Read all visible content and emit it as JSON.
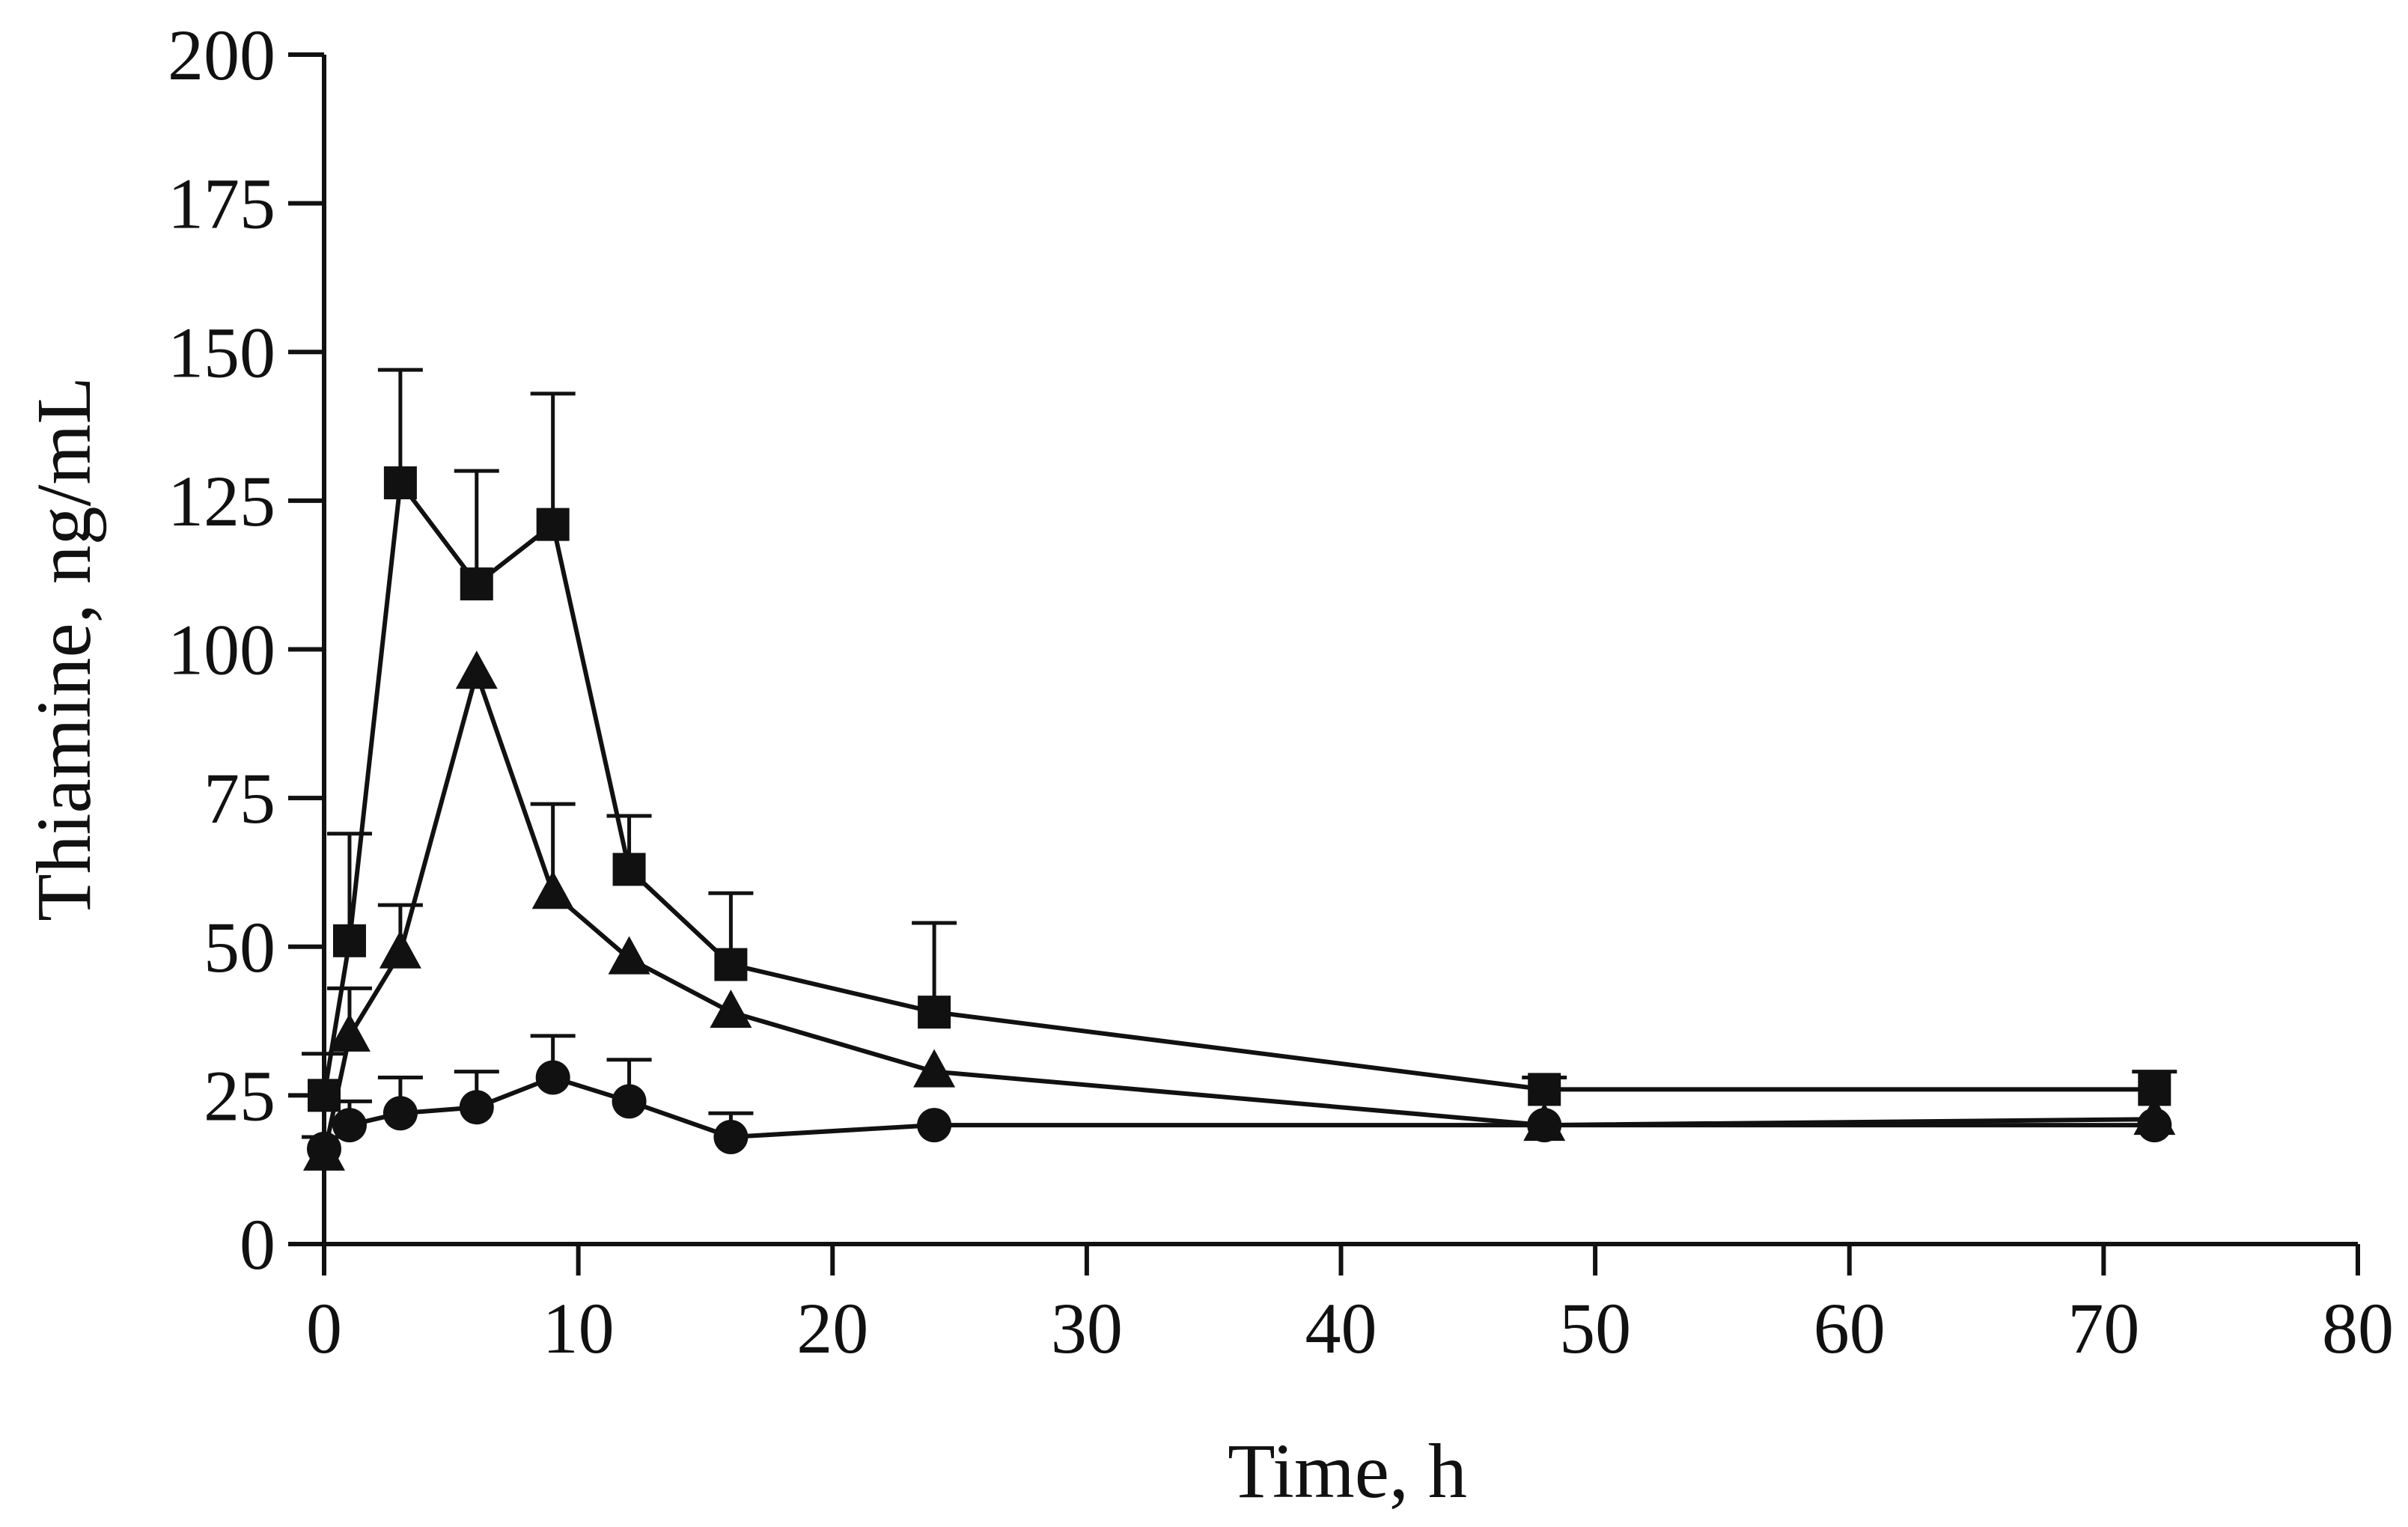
{
  "chart_data": {
    "type": "line",
    "title": "",
    "xlabel": "Time, h",
    "ylabel": "Thiamine, ng/mL",
    "xlim": [
      0,
      80
    ],
    "ylim": [
      0,
      200
    ],
    "xticks": [
      0,
      10,
      20,
      30,
      40,
      50,
      60,
      70,
      80
    ],
    "yticks": [
      0,
      25,
      50,
      75,
      100,
      125,
      150,
      175,
      200
    ],
    "xtick_labels": [
      "0",
      "10",
      "20",
      "30",
      "40",
      "50",
      "60",
      "70",
      "80"
    ],
    "ytick_labels": [
      "0",
      "25",
      "50",
      "75",
      "100",
      "125",
      "150",
      "175",
      "200"
    ],
    "grid": false,
    "legend": "none",
    "series": [
      {
        "name": "square",
        "marker": "square",
        "color": "#111111",
        "x": [
          0,
          1,
          3,
          6,
          9,
          12,
          16,
          24,
          48,
          72
        ],
        "y": [
          25,
          51,
          128,
          111,
          121,
          63,
          47,
          39,
          26,
          26
        ],
        "error": [
          7,
          18,
          19,
          19,
          22,
          9,
          12,
          15,
          2,
          3
        ]
      },
      {
        "name": "triangle",
        "marker": "triangle",
        "color": "#111111",
        "x": [
          0,
          1,
          3,
          6,
          9,
          12,
          16,
          24,
          48,
          72
        ],
        "y": [
          15,
          35,
          49,
          96,
          59,
          48,
          39,
          29,
          20,
          21
        ],
        "error": [
          3,
          8,
          8,
          0,
          15,
          0,
          0,
          0,
          0,
          0
        ]
      },
      {
        "name": "circle",
        "marker": "circle",
        "color": "#111111",
        "x": [
          0,
          1,
          3,
          6,
          9,
          12,
          16,
          24,
          48,
          72
        ],
        "y": [
          16,
          20,
          22,
          23,
          28,
          24,
          18,
          20,
          20,
          20
        ],
        "error": [
          0,
          4,
          6,
          6,
          7,
          7,
          4,
          0,
          0,
          0
        ]
      }
    ]
  }
}
